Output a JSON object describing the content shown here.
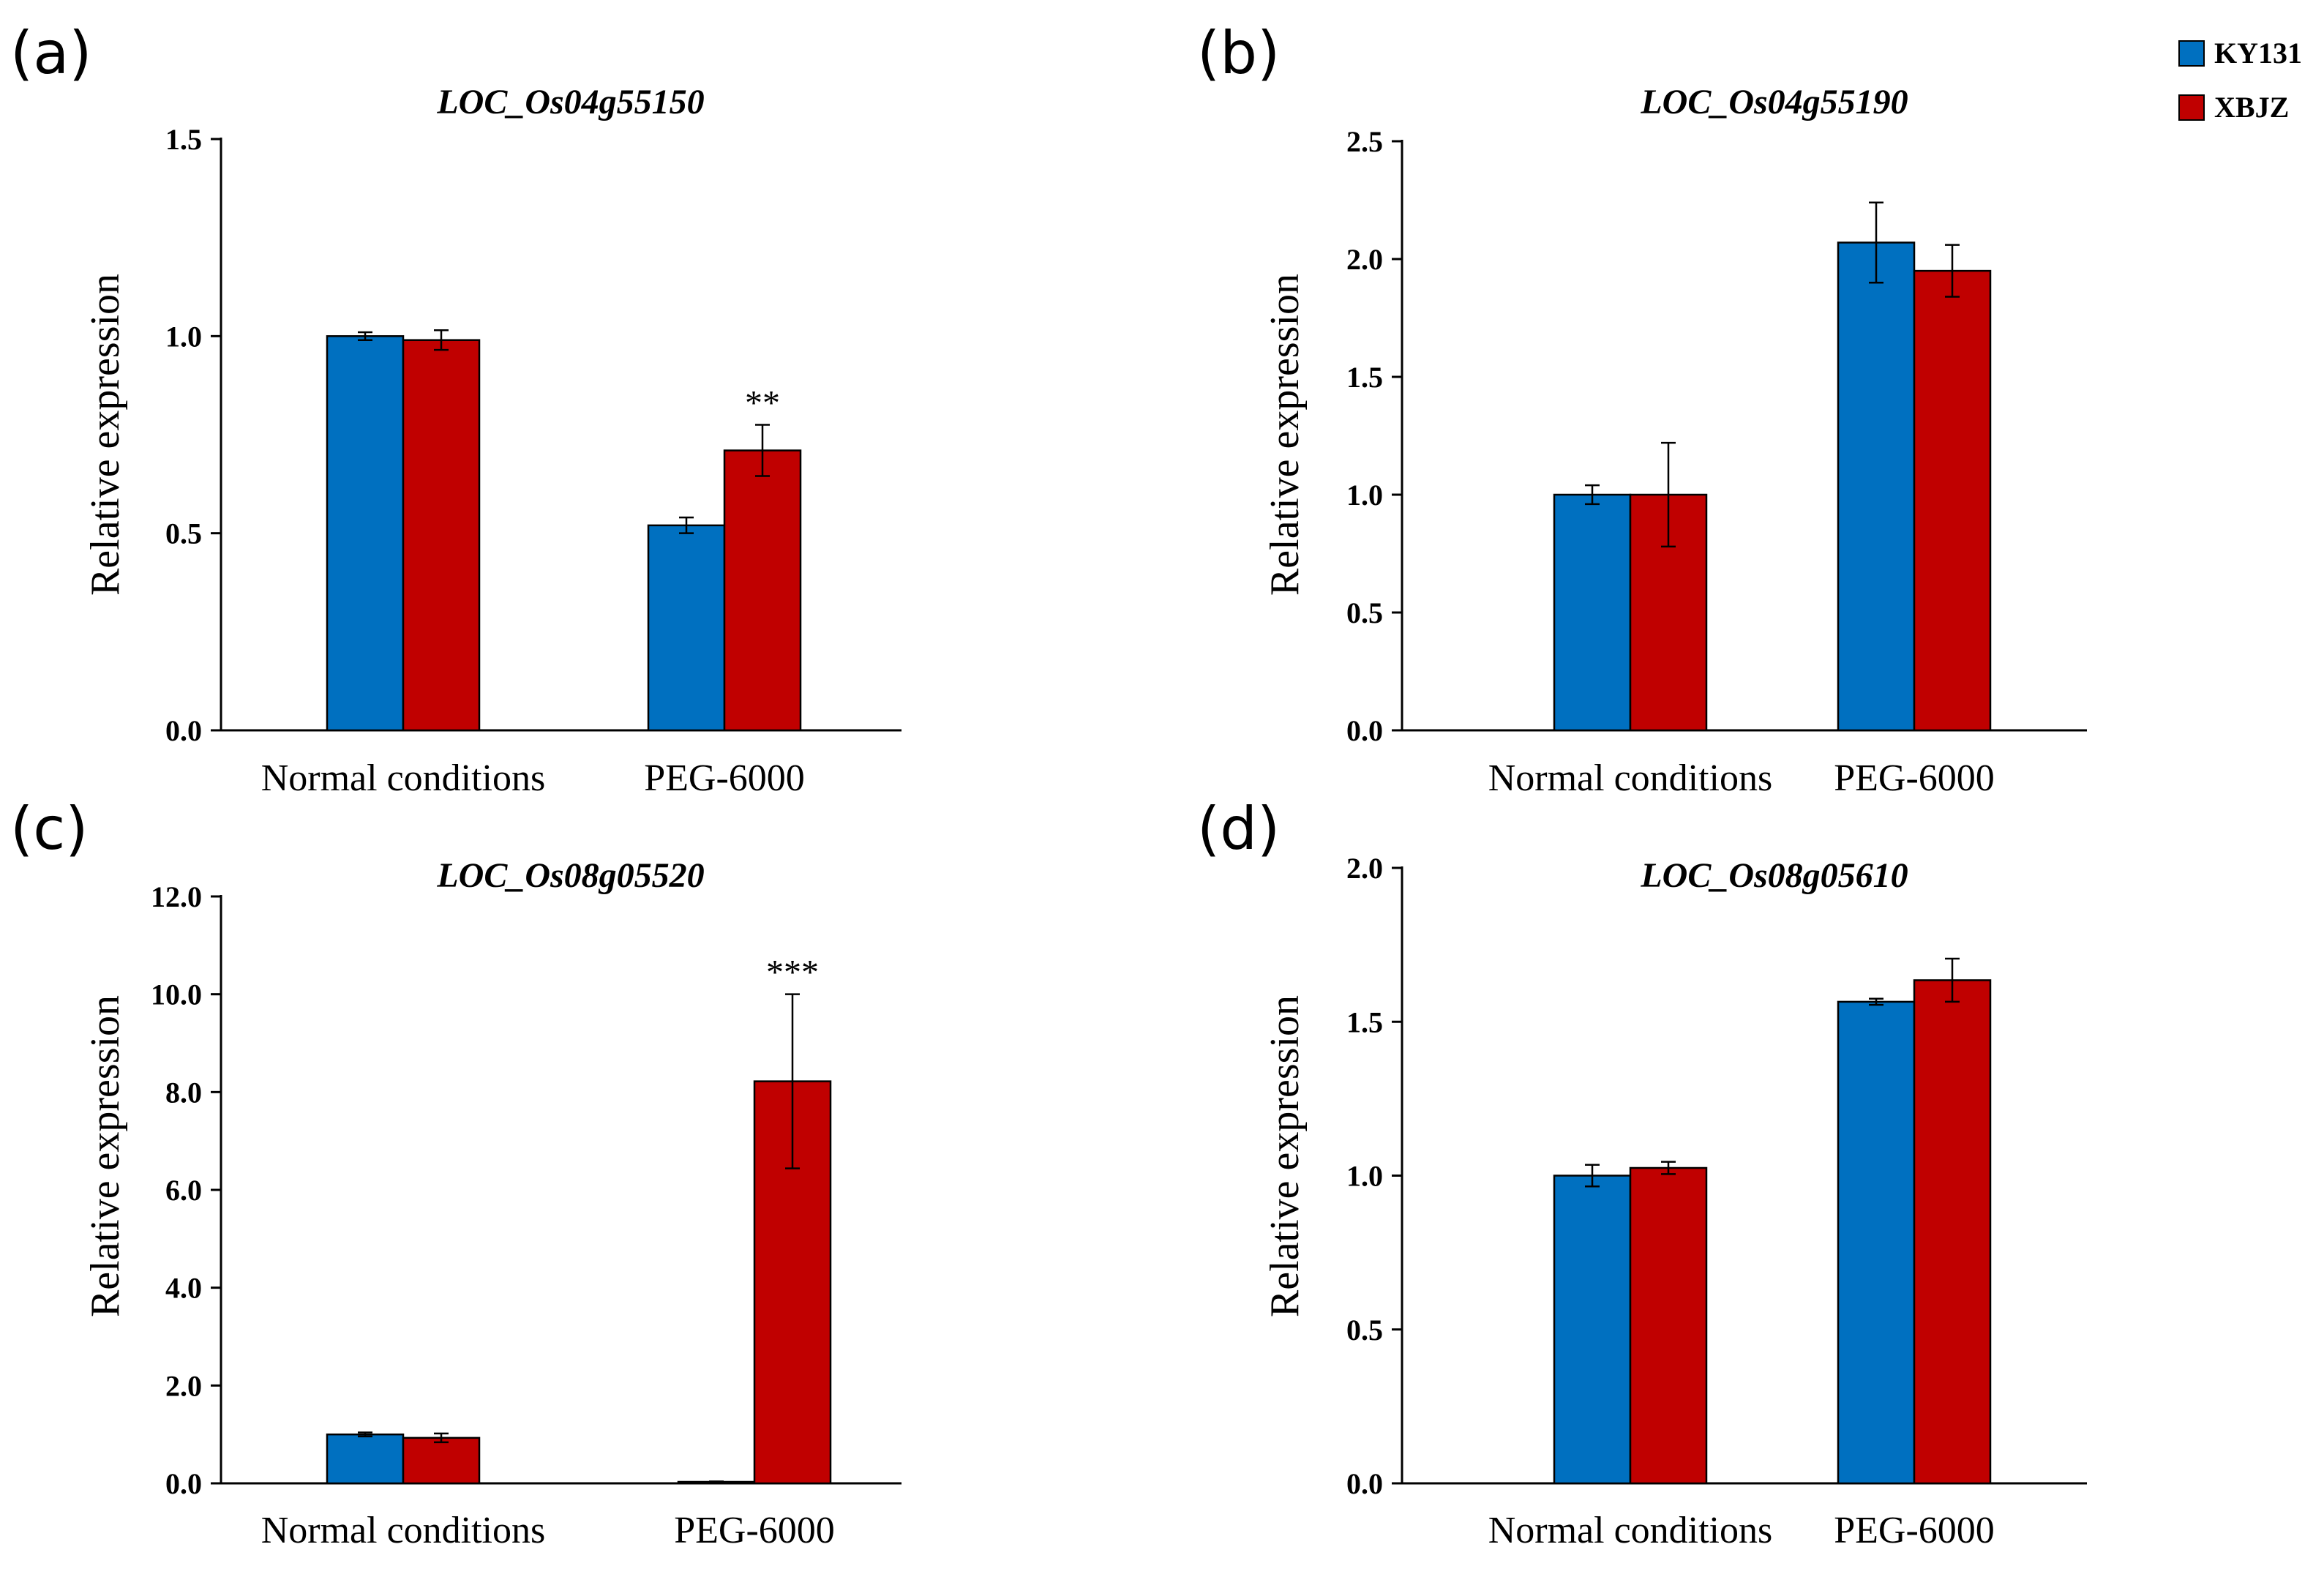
{
  "colors": {
    "KY131": "#0070c0",
    "XBJZ": "#c00000",
    "axis": "#000000"
  },
  "legend": {
    "position": "top-right",
    "items": [
      {
        "name": "KY131",
        "color": "#0070c0"
      },
      {
        "name": "XBJZ",
        "color": "#c00000"
      }
    ]
  },
  "chart_data": [
    {
      "type": "bar",
      "panel_label": "(a)",
      "title": "LOC_Os04g55150",
      "xlabel": "",
      "ylabel": "Relative expression",
      "categories": [
        "Normal conditions",
        "PEG-6000"
      ],
      "ylim": [
        0,
        1.5
      ],
      "yticks": [
        "0.0",
        "0.5",
        "1.0",
        "1.5"
      ],
      "series": [
        {
          "name": "KY131",
          "values": [
            1.0,
            0.52
          ],
          "errors": [
            0.01,
            0.02
          ]
        },
        {
          "name": "XBJZ",
          "values": [
            0.99,
            0.71
          ],
          "errors": [
            0.025,
            0.065
          ]
        }
      ],
      "annotations": [
        {
          "category": 1,
          "series": 1,
          "text": "**"
        }
      ]
    },
    {
      "type": "bar",
      "panel_label": "(b)",
      "title": "LOC_Os04g55190",
      "xlabel": "",
      "ylabel": "Relative expression",
      "categories": [
        "Normal conditions",
        "PEG-6000"
      ],
      "ylim": [
        0,
        2.5
      ],
      "yticks": [
        "0.0",
        "0.5",
        "1.0",
        "1.5",
        "2.0",
        "2.5"
      ],
      "series": [
        {
          "name": "KY131",
          "values": [
            1.0,
            2.07
          ],
          "errors": [
            0.04,
            0.17
          ]
        },
        {
          "name": "XBJZ",
          "values": [
            1.0,
            1.95
          ],
          "errors": [
            0.22,
            0.11
          ]
        }
      ],
      "annotations": []
    },
    {
      "type": "bar",
      "panel_label": "(c)",
      "title": "LOC_Os08g05520",
      "xlabel": "",
      "ylabel": "Relative expression",
      "categories": [
        "Normal conditions",
        "PEG-6000"
      ],
      "ylim": [
        0,
        12.0
      ],
      "yticks": [
        "0.0",
        "2.0",
        "4.0",
        "6.0",
        "8.0",
        "10.0",
        "12.0"
      ],
      "series": [
        {
          "name": "KY131",
          "values": [
            1.0,
            0.03
          ],
          "errors": [
            0.04,
            0.01
          ]
        },
        {
          "name": "XBJZ",
          "values": [
            0.93,
            8.22
          ],
          "errors": [
            0.09,
            1.78
          ]
        }
      ],
      "annotations": [
        {
          "category": 1,
          "series": 1,
          "text": "***"
        }
      ]
    },
    {
      "type": "bar",
      "panel_label": "(d)",
      "title": "LOC_Os08g05610",
      "xlabel": "",
      "ylabel": "Relative expression",
      "categories": [
        "Normal conditions",
        "PEG-6000"
      ],
      "ylim": [
        0,
        2.0
      ],
      "yticks": [
        "0.0",
        "0.5",
        "1.0",
        "1.5",
        "2.0"
      ],
      "series": [
        {
          "name": "KY131",
          "values": [
            1.0,
            1.565
          ],
          "errors": [
            0.035,
            0.01
          ]
        },
        {
          "name": "XBJZ",
          "values": [
            1.025,
            1.635
          ],
          "errors": [
            0.02,
            0.07
          ]
        }
      ],
      "annotations": []
    }
  ]
}
